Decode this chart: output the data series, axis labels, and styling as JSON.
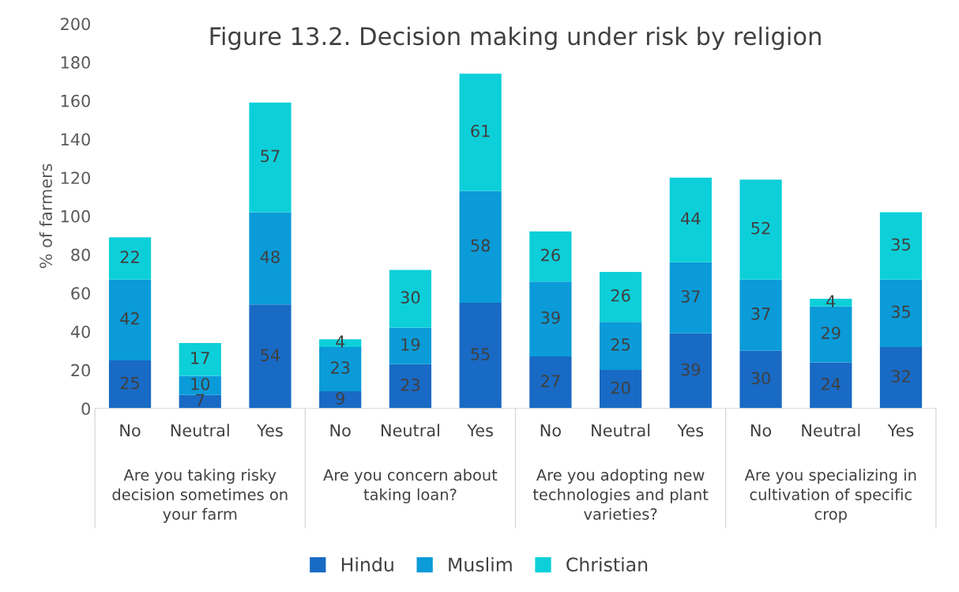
{
  "chart_data": {
    "type": "bar",
    "title": "Figure 13.2. Decision making under risk by religion",
    "ylabel": "% of farmers",
    "categories": [
      "No",
      "Neutral",
      "Yes",
      "No",
      "Neutral",
      "Yes",
      "No",
      "Neutral",
      "Yes",
      "No",
      "Neutral",
      "Yes"
    ],
    "annotations": [
      "Are you taking risky decision sometimes on your farm",
      "Are you concern about taking loan?",
      "Are you adopting new technologies and plant varieties?",
      "Are you specializing in cultivation of specific crop"
    ],
    "series": [
      {
        "name": "Hindu",
        "color": "#186ac4",
        "values": [
          25,
          7,
          54,
          9,
          23,
          55,
          27,
          20,
          39,
          30,
          24,
          32
        ]
      },
      {
        "name": "Muslim",
        "color": "#0a9bd8",
        "values": [
          42,
          10,
          48,
          23,
          19,
          58,
          39,
          25,
          37,
          37,
          29,
          35
        ]
      },
      {
        "name": "Christian",
        "color": "#0dcfd9",
        "values": [
          22,
          17,
          57,
          4,
          30,
          61,
          26,
          26,
          44,
          52,
          4,
          35
        ]
      }
    ],
    "stacked": true,
    "data_labels": true,
    "ylim": [
      0,
      200
    ],
    "yticks": [
      0,
      20,
      40,
      60,
      80,
      100,
      120,
      140,
      160,
      180,
      200
    ],
    "grid": false,
    "legend": "bottom"
  }
}
